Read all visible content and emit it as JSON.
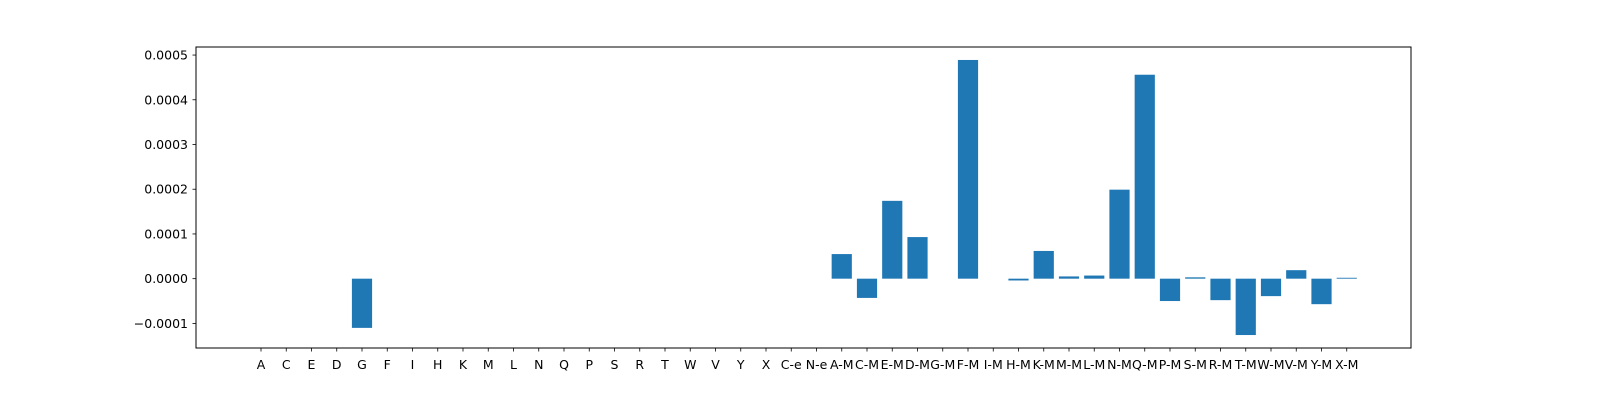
{
  "chart_data": {
    "type": "bar",
    "title": "",
    "xlabel": "",
    "ylabel": "",
    "bar_color": "#1f77b4",
    "grid": false,
    "legend": "none",
    "ylim": [
      -0.000155,
      0.000518
    ],
    "yticks": [
      -0.0001,
      0.0,
      0.0001,
      0.0002,
      0.0003,
      0.0004,
      0.0005
    ],
    "ytick_labels": [
      "−0.0001",
      "0.0000",
      "0.0001",
      "0.0002",
      "0.0003",
      "0.0004",
      "0.0005"
    ],
    "categories": [
      "A",
      "C",
      "E",
      "D",
      "G",
      "F",
      "I",
      "H",
      "K",
      "M",
      "L",
      "N",
      "Q",
      "P",
      "S",
      "R",
      "T",
      "W",
      "V",
      "Y",
      "X",
      "C-e",
      "N-e",
      "A-M",
      "C-M",
      "E-M",
      "D-M",
      "G-M",
      "F-M",
      "I-M",
      "H-M",
      "K-M",
      "M-M",
      "L-M",
      "N-M",
      "Q-M",
      "P-M",
      "S-M",
      "R-M",
      "T-M",
      "W-M",
      "V-M",
      "Y-M",
      "X-M"
    ],
    "values": [
      0,
      0,
      0,
      0,
      -0.00011,
      0,
      0,
      0,
      0,
      0,
      0,
      0,
      0,
      0,
      0,
      0,
      0,
      0,
      0,
      0,
      0,
      0,
      0,
      5.5e-05,
      -4.3e-05,
      0.000174,
      9.3e-05,
      0,
      0.000489,
      0,
      -4e-06,
      6.2e-05,
      5e-06,
      7e-06,
      0.000199,
      0.000456,
      -5e-05,
      3e-06,
      -4.8e-05,
      -0.000126,
      -3.9e-05,
      1.9e-05,
      -5.7e-05,
      2e-06
    ]
  }
}
